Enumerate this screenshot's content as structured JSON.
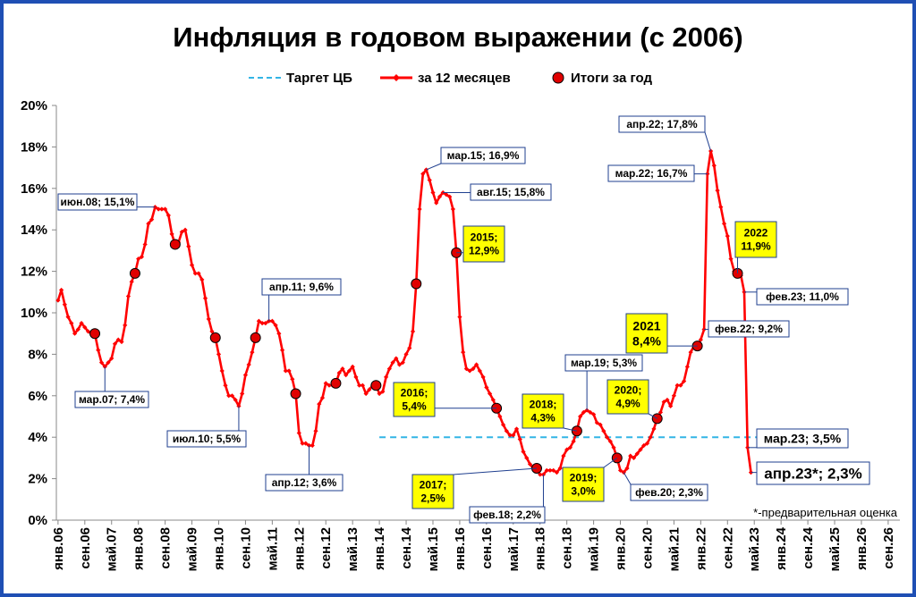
{
  "chart_data": {
    "type": "line",
    "title": "Инфляция в годовом выражении (с 2006)",
    "ylim": [
      0,
      20
    ],
    "y_ticks": [
      "0%",
      "2%",
      "4%",
      "6%",
      "8%",
      "10%",
      "12%",
      "14%",
      "16%",
      "18%",
      "20%"
    ],
    "x_range": [
      "янв.06",
      "дек.26"
    ],
    "x_ticks": [
      "янв.06",
      "сен.06",
      "май.07",
      "янв.08",
      "сен.08",
      "май.09",
      "янв.10",
      "сен.10",
      "май.11",
      "янв.12",
      "сен.12",
      "май.13",
      "янв.14",
      "сен.14",
      "май.15",
      "янв.16",
      "сен.16",
      "май.17",
      "янв.18",
      "сен.18",
      "май.19",
      "янв.20",
      "сен.20",
      "май.21",
      "янв.22",
      "сен.22",
      "май.23",
      "янв.24",
      "сен.24",
      "май.25",
      "янв.26",
      "сен.26"
    ],
    "legend_position": "top-center",
    "grid": false,
    "legend": [
      {
        "name": "Таргет ЦБ",
        "color": "#33b5e5",
        "style": "dashed"
      },
      {
        "name": "за 12 месяцев",
        "color": "#ff0000",
        "style": "line-markers"
      },
      {
        "name": "Итоги за год",
        "color": "#ff0000",
        "style": "dot"
      }
    ],
    "series": [
      {
        "name": "за 12 месяцев",
        "color": "#ff0000",
        "x": [
          "2006-01",
          "2006-02",
          "2006-03",
          "2006-04",
          "2006-05",
          "2006-06",
          "2006-07",
          "2006-08",
          "2006-09",
          "2006-10",
          "2006-11",
          "2006-12",
          "2007-01",
          "2007-02",
          "2007-03",
          "2007-04",
          "2007-05",
          "2007-06",
          "2007-07",
          "2007-08",
          "2007-09",
          "2007-10",
          "2007-11",
          "2007-12",
          "2008-01",
          "2008-02",
          "2008-03",
          "2008-04",
          "2008-05",
          "2008-06",
          "2008-07",
          "2008-08",
          "2008-09",
          "2008-10",
          "2008-11",
          "2008-12",
          "2009-01",
          "2009-02",
          "2009-03",
          "2009-04",
          "2009-05",
          "2009-06",
          "2009-07",
          "2009-08",
          "2009-09",
          "2009-10",
          "2009-11",
          "2009-12",
          "2010-01",
          "2010-02",
          "2010-03",
          "2010-04",
          "2010-05",
          "2010-06",
          "2010-07",
          "2010-08",
          "2010-09",
          "2010-10",
          "2010-11",
          "2010-12",
          "2011-01",
          "2011-02",
          "2011-03",
          "2011-04",
          "2011-05",
          "2011-06",
          "2011-07",
          "2011-08",
          "2011-09",
          "2011-10",
          "2011-11",
          "2011-12",
          "2012-01",
          "2012-02",
          "2012-03",
          "2012-04",
          "2012-05",
          "2012-06",
          "2012-07",
          "2012-08",
          "2012-09",
          "2012-10",
          "2012-11",
          "2012-12",
          "2013-01",
          "2013-02",
          "2013-03",
          "2013-04",
          "2013-05",
          "2013-06",
          "2013-07",
          "2013-08",
          "2013-09",
          "2013-10",
          "2013-11",
          "2013-12",
          "2014-01",
          "2014-02",
          "2014-03",
          "2014-04",
          "2014-05",
          "2014-06",
          "2014-07",
          "2014-08",
          "2014-09",
          "2014-10",
          "2014-11",
          "2014-12",
          "2015-01",
          "2015-02",
          "2015-03",
          "2015-04",
          "2015-05",
          "2015-06",
          "2015-07",
          "2015-08",
          "2015-09",
          "2015-10",
          "2015-11",
          "2015-12",
          "2016-01",
          "2016-02",
          "2016-03",
          "2016-04",
          "2016-05",
          "2016-06",
          "2016-07",
          "2016-08",
          "2016-09",
          "2016-10",
          "2016-11",
          "2016-12",
          "2017-01",
          "2017-02",
          "2017-03",
          "2017-04",
          "2017-05",
          "2017-06",
          "2017-07",
          "2017-08",
          "2017-09",
          "2017-10",
          "2017-11",
          "2017-12",
          "2018-01",
          "2018-02",
          "2018-03",
          "2018-04",
          "2018-05",
          "2018-06",
          "2018-07",
          "2018-08",
          "2018-09",
          "2018-10",
          "2018-11",
          "2018-12",
          "2019-01",
          "2019-02",
          "2019-03",
          "2019-04",
          "2019-05",
          "2019-06",
          "2019-07",
          "2019-08",
          "2019-09",
          "2019-10",
          "2019-11",
          "2019-12",
          "2020-01",
          "2020-02",
          "2020-03",
          "2020-04",
          "2020-05",
          "2020-06",
          "2020-07",
          "2020-08",
          "2020-09",
          "2020-10",
          "2020-11",
          "2020-12",
          "2021-01",
          "2021-02",
          "2021-03",
          "2021-04",
          "2021-05",
          "2021-06",
          "2021-07",
          "2021-08",
          "2021-09",
          "2021-10",
          "2021-11",
          "2021-12",
          "2022-01",
          "2022-02",
          "2022-03",
          "2022-04",
          "2022-05",
          "2022-06",
          "2022-07",
          "2022-08",
          "2022-09",
          "2022-10",
          "2022-11",
          "2022-12",
          "2023-01",
          "2023-02",
          "2023-03",
          "2023-04"
        ],
        "values": [
          10.6,
          11.1,
          10.4,
          9.8,
          9.5,
          9.0,
          9.2,
          9.5,
          9.3,
          9.1,
          9.0,
          9.0,
          8.2,
          7.6,
          7.4,
          7.6,
          7.8,
          8.5,
          8.7,
          8.6,
          9.4,
          10.8,
          11.5,
          11.9,
          12.6,
          12.7,
          13.3,
          14.3,
          14.5,
          15.1,
          15.0,
          15.0,
          15.0,
          14.7,
          13.8,
          13.3,
          13.4,
          13.9,
          14.0,
          13.2,
          12.3,
          11.9,
          11.9,
          11.6,
          10.7,
          9.7,
          9.1,
          8.8,
          8.0,
          7.2,
          6.5,
          6.0,
          6.0,
          5.8,
          5.5,
          6.1,
          7.0,
          7.5,
          8.1,
          8.8,
          9.6,
          9.5,
          9.5,
          9.6,
          9.6,
          9.4,
          9.0,
          8.2,
          7.2,
          7.2,
          6.8,
          6.1,
          4.2,
          3.7,
          3.7,
          3.6,
          3.6,
          4.3,
          5.6,
          5.9,
          6.6,
          6.5,
          6.5,
          6.6,
          7.1,
          7.3,
          7.0,
          7.2,
          7.4,
          6.9,
          6.5,
          6.5,
          6.1,
          6.3,
          6.5,
          6.5,
          6.1,
          6.2,
          6.9,
          7.3,
          7.6,
          7.8,
          7.5,
          7.6,
          8.0,
          8.3,
          9.1,
          11.4,
          15.0,
          16.7,
          16.9,
          16.4,
          15.8,
          15.3,
          15.6,
          15.8,
          15.7,
          15.6,
          15.0,
          12.9,
          9.8,
          8.1,
          7.3,
          7.2,
          7.3,
          7.5,
          7.2,
          6.9,
          6.4,
          6.1,
          5.8,
          5.4,
          5.0,
          4.6,
          4.3,
          4.1,
          4.1,
          4.4,
          3.9,
          3.3,
          3.0,
          2.7,
          2.5,
          2.5,
          2.2,
          2.2,
          2.4,
          2.4,
          2.4,
          2.3,
          2.5,
          3.1,
          3.4,
          3.5,
          3.8,
          4.3,
          5.0,
          5.2,
          5.3,
          5.2,
          5.1,
          4.7,
          4.6,
          4.3,
          4.0,
          3.8,
          3.5,
          3.0,
          2.4,
          2.3,
          2.5,
          3.1,
          3.0,
          3.2,
          3.4,
          3.6,
          3.7,
          4.0,
          4.4,
          4.9,
          5.2,
          5.7,
          5.8,
          5.5,
          6.0,
          6.5,
          6.5,
          6.7,
          7.4,
          8.1,
          8.4,
          8.4,
          8.7,
          9.2,
          16.7,
          17.8,
          17.1,
          15.9,
          15.1,
          14.3,
          13.7,
          12.6,
          12.0,
          11.9,
          11.8,
          11.0,
          3.5,
          2.3
        ]
      },
      {
        "name": "Итоги за год",
        "color": "#ff0000",
        "x": [
          "2006-12",
          "2007-12",
          "2008-12",
          "2009-12",
          "2010-12",
          "2011-12",
          "2012-12",
          "2013-12",
          "2014-12",
          "2015-12",
          "2016-12",
          "2017-12",
          "2018-12",
          "2019-12",
          "2020-12",
          "2021-12",
          "2022-12"
        ],
        "values": [
          9.0,
          11.9,
          13.3,
          8.8,
          8.8,
          6.1,
          6.6,
          6.5,
          11.4,
          12.9,
          5.4,
          2.5,
          4.3,
          3.0,
          4.9,
          8.4,
          11.9
        ]
      },
      {
        "name": "Таргет ЦБ",
        "color": "#33b5e5",
        "x": [
          "2014-01",
          "2023-06"
        ],
        "values": [
          4.0,
          4.0
        ]
      }
    ],
    "annotations": [
      {
        "text": "июн.08; 15,1%",
        "x": "2008-06",
        "value": 15.1,
        "style": "plain"
      },
      {
        "text": "мар.07; 7,4%",
        "x": "2007-03",
        "value": 7.4,
        "style": "plain"
      },
      {
        "text": "июл.10; 5,5%",
        "x": "2010-07",
        "value": 5.5,
        "style": "plain"
      },
      {
        "text": "апр.11; 9,6%",
        "x": "2011-04",
        "value": 9.6,
        "style": "plain"
      },
      {
        "text": "апр.12; 3,6%",
        "x": "2012-04",
        "value": 3.6,
        "style": "plain"
      },
      {
        "text": "мар.15; 16,9%",
        "x": "2015-03",
        "value": 16.9,
        "style": "plain"
      },
      {
        "text": "авг.15; 15,8%",
        "x": "2015-08",
        "value": 15.8,
        "style": "plain"
      },
      {
        "text": "2015;\n12,9%",
        "x": "2015-12",
        "value": 12.9,
        "style": "yellow"
      },
      {
        "text": "2016;\n5,4%",
        "x": "2016-12",
        "value": 5.4,
        "style": "yellow"
      },
      {
        "text": "2017;\n2,5%",
        "x": "2017-12",
        "value": 2.5,
        "style": "yellow"
      },
      {
        "text": "фев.18; 2,2%",
        "x": "2018-02",
        "value": 2.2,
        "style": "plain"
      },
      {
        "text": "2018;\n4,3%",
        "x": "2018-12",
        "value": 4.3,
        "style": "yellow"
      },
      {
        "text": "мар.19; 5,3%",
        "x": "2019-03",
        "value": 5.3,
        "style": "plain"
      },
      {
        "text": "2019;\n3,0%",
        "x": "2019-12",
        "value": 3.0,
        "style": "yellow"
      },
      {
        "text": "фев.20; 2,3%",
        "x": "2020-02",
        "value": 2.3,
        "style": "plain"
      },
      {
        "text": "2020;\n4,9%",
        "x": "2020-12",
        "value": 4.9,
        "style": "yellow"
      },
      {
        "text": "2021\n8,4%",
        "x": "2021-12",
        "value": 8.4,
        "style": "yellow-large"
      },
      {
        "text": "фев.22; 9,2%",
        "x": "2022-02",
        "value": 9.2,
        "style": "plain"
      },
      {
        "text": "мар.22; 16,7%",
        "x": "2022-03",
        "value": 16.7,
        "style": "plain"
      },
      {
        "text": "апр.22; 17,8%",
        "x": "2022-04",
        "value": 17.8,
        "style": "plain"
      },
      {
        "text": "2022\n11,9%",
        "x": "2022-12",
        "value": 11.9,
        "style": "yellow"
      },
      {
        "text": "фев.23; 11,0%",
        "x": "2023-02",
        "value": 11.0,
        "style": "plain"
      },
      {
        "text": "мар.23; 3,5%",
        "x": "2023-03",
        "value": 3.5,
        "style": "plain-medium"
      },
      {
        "text": "апр.23*; 2,3%",
        "x": "2023-04",
        "value": 2.3,
        "style": "plain-large"
      }
    ],
    "footnote": "*-предварительная оценка"
  }
}
